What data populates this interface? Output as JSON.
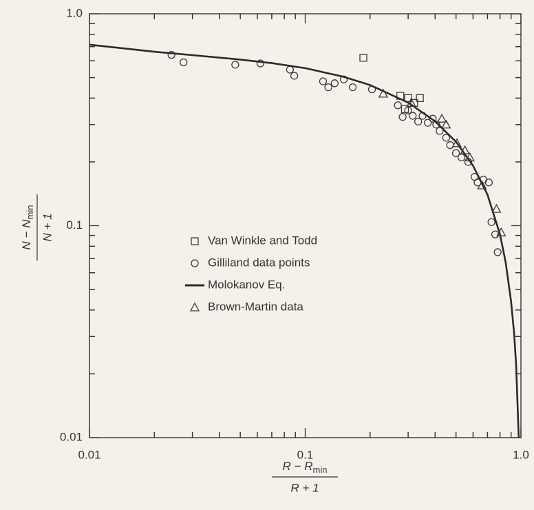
{
  "chart_data": {
    "type": "scatter",
    "xscale": "log",
    "yscale": "log",
    "xlim": [
      0.01,
      1
    ],
    "ylim": [
      0.01,
      1
    ],
    "xticks": [
      0.01,
      0.1,
      {
        "value": 1,
        "label": "1.0"
      }
    ],
    "yticks": [
      0.01,
      0.1,
      {
        "value": 1,
        "label": "1.0"
      }
    ],
    "minor_ticks": [
      0.02,
      0.03,
      0.04,
      0.05,
      0.06,
      0.07,
      0.08,
      0.09,
      0.2,
      0.3,
      0.4,
      0.5,
      0.6,
      0.7,
      0.8,
      0.9
    ],
    "x_label": {
      "numerator": "R − R",
      "numerator_sub": "min",
      "denominator": "R + 1"
    },
    "y_label": {
      "numerator": "N − N",
      "numerator_sub": "min",
      "denominator": "N + 1"
    },
    "series": [
      {
        "name": "Van Winkle and Todd",
        "marker": "square",
        "color": "#3a3a3a",
        "x": [
          0.186,
          0.276,
          0.3,
          0.32,
          0.34,
          0.29
        ],
        "values": [
          0.62,
          0.41,
          0.4,
          0.38,
          0.4,
          0.355
        ]
      },
      {
        "name": "Gilliland data points",
        "marker": "circle",
        "color": "#3a3a3a",
        "x": [
          0.024,
          0.0273,
          0.0474,
          0.062,
          0.085,
          0.089,
          0.121,
          0.128,
          0.137,
          0.151,
          0.166,
          0.204,
          0.269,
          0.283,
          0.3,
          0.315,
          0.334,
          0.35,
          0.37,
          0.39,
          0.405,
          0.42,
          0.45,
          0.47,
          0.5,
          0.53,
          0.57,
          0.61,
          0.63,
          0.67,
          0.71,
          0.73,
          0.76,
          0.78
        ],
        "values": [
          0.64,
          0.59,
          0.575,
          0.583,
          0.545,
          0.51,
          0.48,
          0.45,
          0.47,
          0.49,
          0.45,
          0.44,
          0.37,
          0.326,
          0.35,
          0.33,
          0.31,
          0.33,
          0.306,
          0.32,
          0.3,
          0.28,
          0.26,
          0.24,
          0.22,
          0.21,
          0.2,
          0.17,
          0.16,
          0.165,
          0.16,
          0.104,
          0.091,
          0.075
        ]
      },
      {
        "name": "Molokanov Eq.",
        "marker": "line",
        "color": "#2a2a2a",
        "x": [
          0.01,
          0.02,
          0.03,
          0.05,
          0.07,
          0.1,
          0.15,
          0.2,
          0.3,
          0.4,
          0.5,
          0.6,
          0.7,
          0.8,
          0.85,
          0.9,
          0.93,
          0.95,
          0.977
        ],
        "values": [
          0.715,
          0.662,
          0.638,
          0.608,
          0.585,
          0.554,
          0.505,
          0.461,
          0.381,
          0.311,
          0.249,
          0.192,
          0.14,
          0.091,
          0.067,
          0.044,
          0.031,
          0.022,
          0.01
        ]
      },
      {
        "name": "Brown-Martin data",
        "marker": "triangle",
        "color": "#3a3a3a",
        "x": [
          0.23,
          0.31,
          0.43,
          0.45,
          0.505,
          0.55,
          0.58,
          0.66,
          0.77,
          0.81
        ],
        "values": [
          0.42,
          0.38,
          0.32,
          0.3,
          0.245,
          0.227,
          0.21,
          0.155,
          0.12,
          0.093
        ]
      }
    ]
  }
}
